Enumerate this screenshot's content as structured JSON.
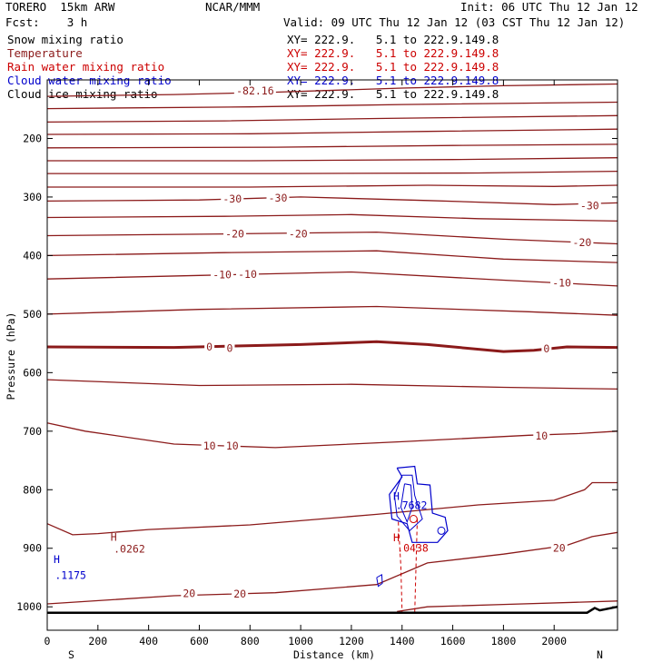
{
  "header": {
    "model": "TORERO  15km ARW",
    "center": "NCAR/MMM",
    "init": "Init: 06 UTC Thu 12 Jan 12",
    "fcst": "Fcst:    3 h",
    "valid": "Valid: 09 UTC Thu 12 Jan 12 (03 CST Thu 12 Jan 12)"
  },
  "fields": [
    {
      "name": "Snow mixing ratio",
      "color": "#000000",
      "xy": "XY= 222.9.   5.1 to 222.9.149.8",
      "xy_color": "#000000"
    },
    {
      "name": "Temperature",
      "color": "#8b1a1a",
      "xy": "XY= 222.9.   5.1 to 222.9.149.8",
      "xy_color": "#cc0000"
    },
    {
      "name": "Rain water mixing ratio",
      "color": "#cc0000",
      "xy": "XY= 222.9.   5.1 to 222.9.149.8",
      "xy_color": "#cc0000"
    },
    {
      "name": "Cloud water mixing ratio",
      "color": "#0000cc",
      "xy": "XY= 222.9.   5.1 to 222.9.149.8",
      "xy_color": "#0000cc"
    },
    {
      "name": "Cloud ice mixing ratio",
      "color": "#000000",
      "xy": "XY= 222.9.   5.1 to 222.9.149.8",
      "xy_color": "#000000"
    }
  ],
  "chart_data": {
    "type": "contour-cross-section",
    "xlabel": "Distance (km)",
    "ylabel": "Pressure (hPa)",
    "xlim": [
      0,
      2250
    ],
    "ylim": [
      1040,
      100
    ],
    "x_ticks": [
      0,
      200,
      400,
      600,
      800,
      1000,
      1200,
      1400,
      1600,
      1800,
      2000
    ],
    "y_ticks": [
      200,
      300,
      400,
      500,
      600,
      700,
      800,
      900,
      1000
    ],
    "x_end_labels": [
      "S",
      "N"
    ],
    "temperature_labels": [
      {
        "text": "-82.16",
        "x": 820,
        "p": 119
      },
      {
        "text": "-30",
        "x": 730,
        "p": 303
      },
      {
        "text": "-30",
        "x": 910,
        "p": 302
      },
      {
        "text": "-30",
        "x": 2140,
        "p": 315
      },
      {
        "text": "-20",
        "x": 740,
        "p": 363
      },
      {
        "text": "-20",
        "x": 990,
        "p": 363
      },
      {
        "text": "-20",
        "x": 2110,
        "p": 378
      },
      {
        "text": "-10",
        "x": 690,
        "p": 433
      },
      {
        "text": "-10",
        "x": 790,
        "p": 432
      },
      {
        "text": "-10",
        "x": 2030,
        "p": 447
      },
      {
        "text": "0",
        "x": 640,
        "p": 556
      },
      {
        "text": "0",
        "x": 720,
        "p": 558
      },
      {
        "text": "0",
        "x": 1970,
        "p": 559
      },
      {
        "text": "10",
        "x": 640,
        "p": 725
      },
      {
        "text": "10",
        "x": 730,
        "p": 725
      },
      {
        "text": "10",
        "x": 1950,
        "p": 708
      },
      {
        "text": "20",
        "x": 2020,
        "p": 900
      },
      {
        "text": "20",
        "x": 560,
        "p": 977
      },
      {
        "text": "20",
        "x": 760,
        "p": 978
      }
    ],
    "extrema_labels": [
      {
        "text": "H",
        "x": 25,
        "p": 919,
        "color": "#0000cc"
      },
      {
        "text": ".1175",
        "x": 30,
        "p": 946,
        "color": "#0000cc"
      },
      {
        "text": "H",
        "x": 250,
        "p": 881,
        "color": "#8b1a1a"
      },
      {
        "text": ".0262",
        "x": 262,
        "p": 901,
        "color": "#8b1a1a"
      },
      {
        "text": "H",
        "x": 1365,
        "p": 811,
        "color": "#0000cc"
      },
      {
        "text": ".7682",
        "x": 1375,
        "p": 827,
        "color": "#0000cc"
      },
      {
        "text": "H",
        "x": 1365,
        "p": 882,
        "color": "#cc0000"
      },
      {
        "text": ".0438",
        "x": 1380,
        "p": 900,
        "color": "#cc0000"
      }
    ]
  }
}
